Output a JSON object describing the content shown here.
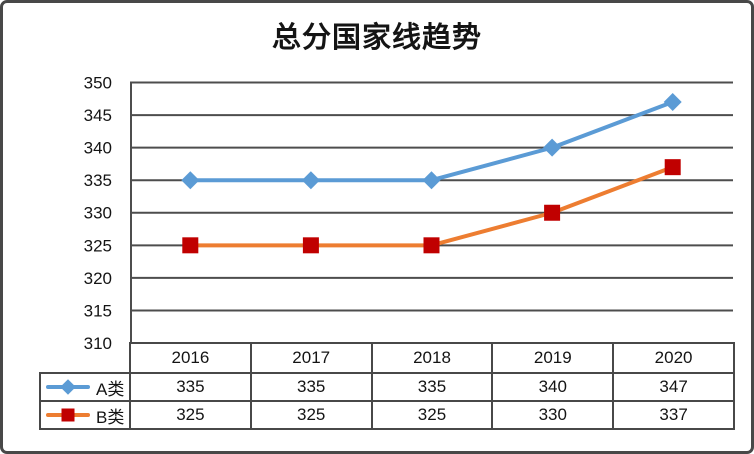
{
  "title": "总分国家线趋势",
  "chart_data": {
    "type": "line",
    "title": "总分国家线趋势",
    "categories": [
      "2016",
      "2017",
      "2018",
      "2019",
      "2020"
    ],
    "series": [
      {
        "name": "A类",
        "values": [
          335,
          335,
          335,
          340,
          347
        ],
        "line_color": "#5B9BD5",
        "marker": "diamond",
        "marker_color": "#5B9BD5"
      },
      {
        "name": "B类",
        "values": [
          325,
          325,
          325,
          330,
          337
        ],
        "line_color": "#ED7D31",
        "marker": "square",
        "marker_color": "#C00000"
      }
    ],
    "ylim": [
      310,
      350
    ],
    "ytick_step": 5,
    "yticks": [
      350,
      345,
      340,
      335,
      330,
      325,
      320,
      315,
      310
    ],
    "grid": true,
    "legend_position": "left-of-data-table",
    "data_table": true
  },
  "colors": {
    "background": "#ffffff",
    "frame_border": "#484848",
    "grid_line": "#4d4d4d",
    "axis_line": "#4d4d4d",
    "table_border": "#484848",
    "text": "#141414"
  }
}
